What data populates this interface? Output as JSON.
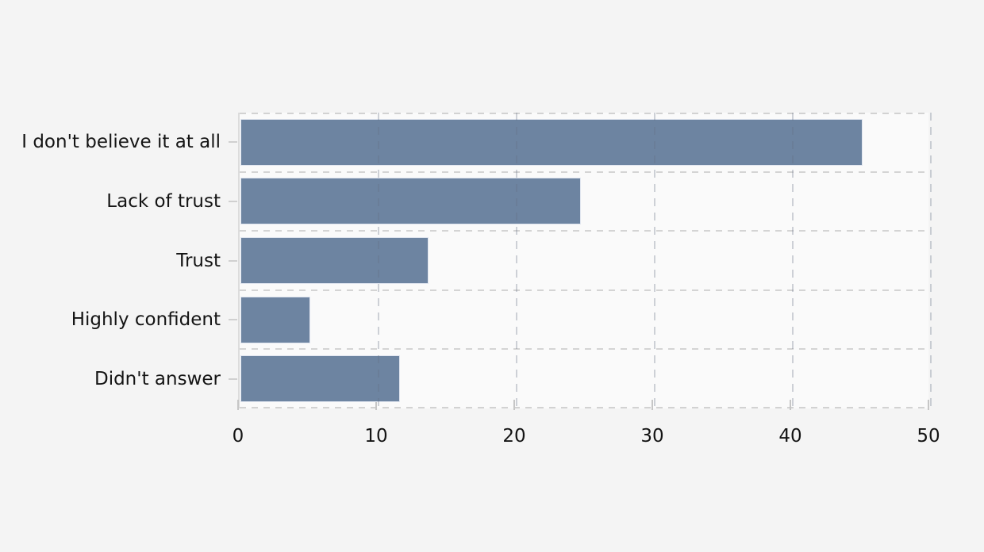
{
  "chart_data": {
    "type": "bar",
    "orientation": "horizontal",
    "title": "",
    "xlabel": "",
    "ylabel": "",
    "categories": [
      "I don't believe it at all",
      "Lack of trust",
      "Trust",
      "Highly confident",
      "Didn't answer"
    ],
    "values": [
      45.1,
      24.7,
      13.7,
      5.1,
      11.6
    ],
    "xlim": [
      0,
      50
    ],
    "x_ticks": [
      0,
      10,
      20,
      30,
      40,
      50
    ],
    "x_tick_labels": [
      "0",
      "10",
      "20",
      "30",
      "40",
      "50"
    ],
    "grid": "dashed vertical gridlines at each x tick, dashed horizontal separators between bar rows, dashed plot border",
    "legend": "none",
    "colors": {
      "bar_fill": "#6d84a1",
      "bar_border": "#e0e5ef",
      "plot_background": "#fafafa",
      "page_background": "#f4f4f4",
      "grid_line": "#d2d2d2",
      "tick_mark": "#c6c6c6",
      "label_text": "#141414"
    }
  }
}
